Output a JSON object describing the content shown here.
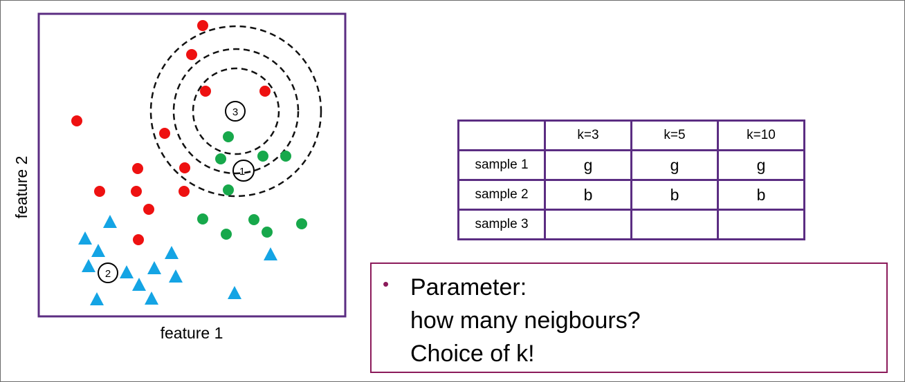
{
  "diagram": {
    "xlabel": "feature 1",
    "ylabel": "feature 2",
    "colors": {
      "red": "#ee1111",
      "green": "#17a84b",
      "blue": "#14a4e4",
      "frame": "#5b2d82"
    },
    "samples": [
      {
        "id": "1",
        "label": "1"
      },
      {
        "id": "2",
        "label": "2"
      },
      {
        "id": "3",
        "label": "3"
      }
    ],
    "neighbourhood_circles_around_sample": "3",
    "neighbourhood_circle_count": 3
  },
  "table": {
    "columns": [
      "k=3",
      "k=5",
      "k=10"
    ],
    "rows": [
      {
        "label": "sample 1",
        "values": [
          "g",
          "g",
          "g"
        ]
      },
      {
        "label": "sample 2",
        "values": [
          "b",
          "b",
          "b"
        ]
      },
      {
        "label": "sample 3",
        "values": [
          "",
          "",
          ""
        ]
      }
    ]
  },
  "note": {
    "bullet": "•",
    "lines": [
      "Parameter:",
      "how many neigbours?",
      "Choice of k!"
    ]
  }
}
